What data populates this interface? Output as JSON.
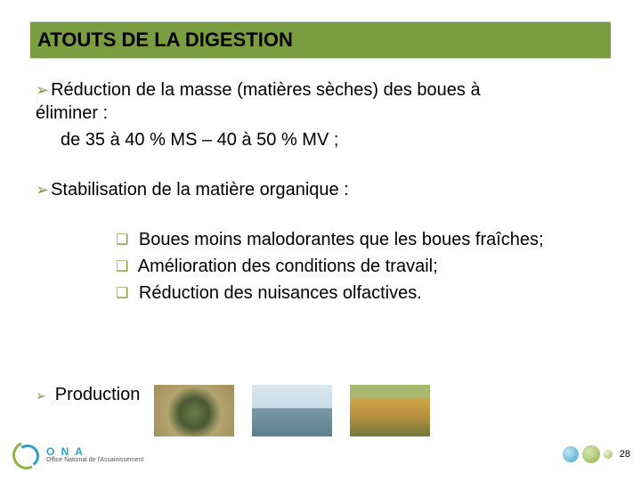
{
  "title": "ATOUTS  DE LA DIGESTION",
  "bullets": {
    "b1_line1": "Réduction de la masse (matières sèches) des boues à",
    "b1_line2": "éliminer :",
    "b1_sub": "de 35 à 40 % MS – 40 à 50 % MV ;",
    "b2": "Stabilisation de la matière organique :",
    "b2_s1": " Boues moins malodorantes que les boues fraîches;",
    "b2_s2": " Amélioration des conditions de travail;",
    "b2_s3": " Réduction des nuisances olfactives.",
    "b3": "Production"
  },
  "logo": {
    "acronym": "O N A",
    "subtitle": "Office National de l'Assainissement"
  },
  "page_number": "28",
  "colors": {
    "accent": "#7a9d3f",
    "text": "#000000",
    "logo_blue": "#2aa0c8",
    "logo_green": "#8fb04a"
  }
}
